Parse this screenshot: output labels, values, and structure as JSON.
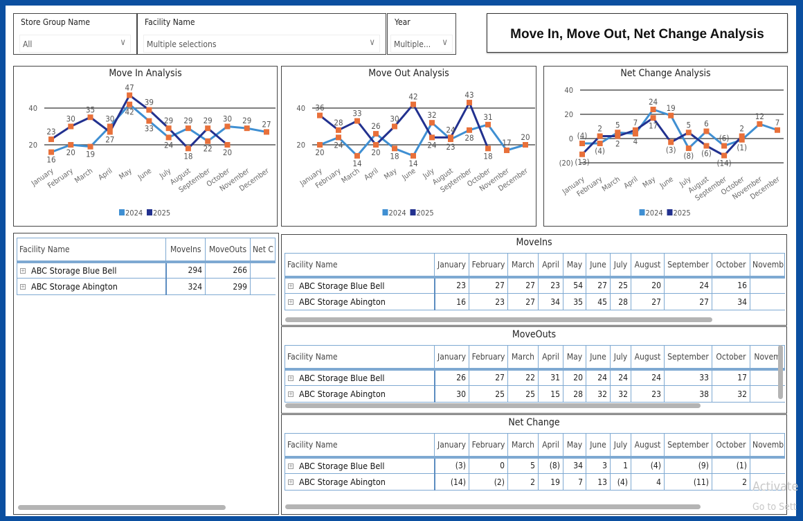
{
  "slicers": [
    {
      "title": "Store Group Name",
      "value": "All"
    },
    {
      "title": "Facility Name",
      "value": "Multiple selections"
    },
    {
      "title": "Year",
      "value": "Multiple..."
    }
  ],
  "report_title": "Move In, Move Out, Net Change  Analysis",
  "colors": {
    "series_2024": "#3f8fd2",
    "series_2025": "#22318f",
    "marker": "#e8703a",
    "frame": "#0b4fa0"
  },
  "chart_data": [
    {
      "type": "line",
      "title": "Move In Analysis",
      "categories": [
        "January",
        "February",
        "March",
        "April",
        "May",
        "June",
        "July",
        "August",
        "September",
        "October",
        "November",
        "December"
      ],
      "yticks": [
        20,
        40
      ],
      "ylim": [
        10,
        50
      ],
      "legend": "bottom",
      "series": [
        {
          "name": "2024",
          "values": [
            16,
            20,
            19,
            30,
            42,
            33,
            24,
            29,
            22,
            30,
            29,
            27
          ]
        },
        {
          "name": "2025",
          "values": [
            23,
            30,
            35,
            27,
            47,
            39,
            29,
            18,
            29,
            20,
            null,
            null
          ]
        }
      ]
    },
    {
      "type": "line",
      "title": "Move Out Analysis",
      "categories": [
        "January",
        "February",
        "March",
        "April",
        "May",
        "June",
        "July",
        "August",
        "September",
        "October",
        "November",
        "December"
      ],
      "yticks": [
        20,
        40
      ],
      "ylim": [
        10,
        50
      ],
      "legend": "bottom",
      "series": [
        {
          "name": "2024",
          "values": [
            20,
            24,
            14,
            26,
            18,
            14,
            32,
            23,
            28,
            31,
            17,
            20
          ]
        },
        {
          "name": "2025",
          "values": [
            36,
            28,
            33,
            20,
            30,
            42,
            24,
            24,
            43,
            18,
            null,
            null
          ]
        }
      ]
    },
    {
      "type": "line",
      "title": "Net Change Analysis",
      "categories": [
        "January",
        "February",
        "March",
        "April",
        "May",
        "June",
        "July",
        "August",
        "September",
        "October",
        "November",
        "December"
      ],
      "yticks": [
        -20,
        0,
        20,
        40
      ],
      "ylim": [
        -20,
        40
      ],
      "legend": "bottom",
      "series": [
        {
          "name": "2024",
          "values": [
            -4,
            -4,
            5,
            4,
            24,
            19,
            -8,
            6,
            -6,
            -1,
            12,
            7
          ]
        },
        {
          "name": "2025",
          "values": [
            -13,
            2,
            2,
            7,
            17,
            -3,
            5,
            -6,
            -14,
            2,
            null,
            null
          ]
        }
      ]
    }
  ],
  "summary_table": {
    "columns": [
      "Facility Name",
      "MoveIns",
      "MoveOuts",
      "Net C"
    ],
    "rows": [
      [
        "ABC Storage Blue Bell",
        "294",
        "266",
        ""
      ],
      [
        "ABC Storage Abington",
        "324",
        "299",
        ""
      ]
    ]
  },
  "month_tables": [
    {
      "title": "MoveIns",
      "columns": [
        "Facility Name",
        "January",
        "February",
        "March",
        "April",
        "May",
        "June",
        "July",
        "August",
        "September",
        "October",
        "Novemb"
      ],
      "rows": [
        [
          "ABC Storage Blue Bell",
          "23",
          "27",
          "27",
          "23",
          "54",
          "27",
          "25",
          "20",
          "24",
          "16",
          ""
        ],
        [
          "ABC Storage Abington",
          "16",
          "23",
          "27",
          "34",
          "35",
          "45",
          "28",
          "27",
          "27",
          "34",
          ""
        ]
      ]
    },
    {
      "title": "MoveOuts",
      "columns": [
        "Facility Name",
        "January",
        "February",
        "March",
        "April",
        "May",
        "June",
        "July",
        "August",
        "September",
        "October",
        "Novem"
      ],
      "rows": [
        [
          "ABC Storage Blue Bell",
          "26",
          "27",
          "22",
          "31",
          "20",
          "24",
          "24",
          "24",
          "33",
          "17",
          ""
        ],
        [
          "ABC Storage Abington",
          "30",
          "25",
          "25",
          "15",
          "28",
          "32",
          "32",
          "23",
          "38",
          "32",
          ""
        ]
      ]
    },
    {
      "title": "Net Change",
      "columns": [
        "Facility Name",
        "January",
        "February",
        "March",
        "April",
        "May",
        "June",
        "July",
        "August",
        "September",
        "October",
        "Novemb"
      ],
      "rows": [
        [
          "ABC Storage Blue Bell",
          "(3)",
          "0",
          "5",
          "(8)",
          "34",
          "3",
          "1",
          "(4)",
          "(9)",
          "(1)",
          ""
        ],
        [
          "ABC Storage Abington",
          "(14)",
          "(2)",
          "2",
          "19",
          "7",
          "13",
          "(4)",
          "4",
          "(11)",
          "2",
          ""
        ]
      ]
    }
  ],
  "watermark": {
    "line1": "Activate",
    "line2": "Go to Sett"
  }
}
